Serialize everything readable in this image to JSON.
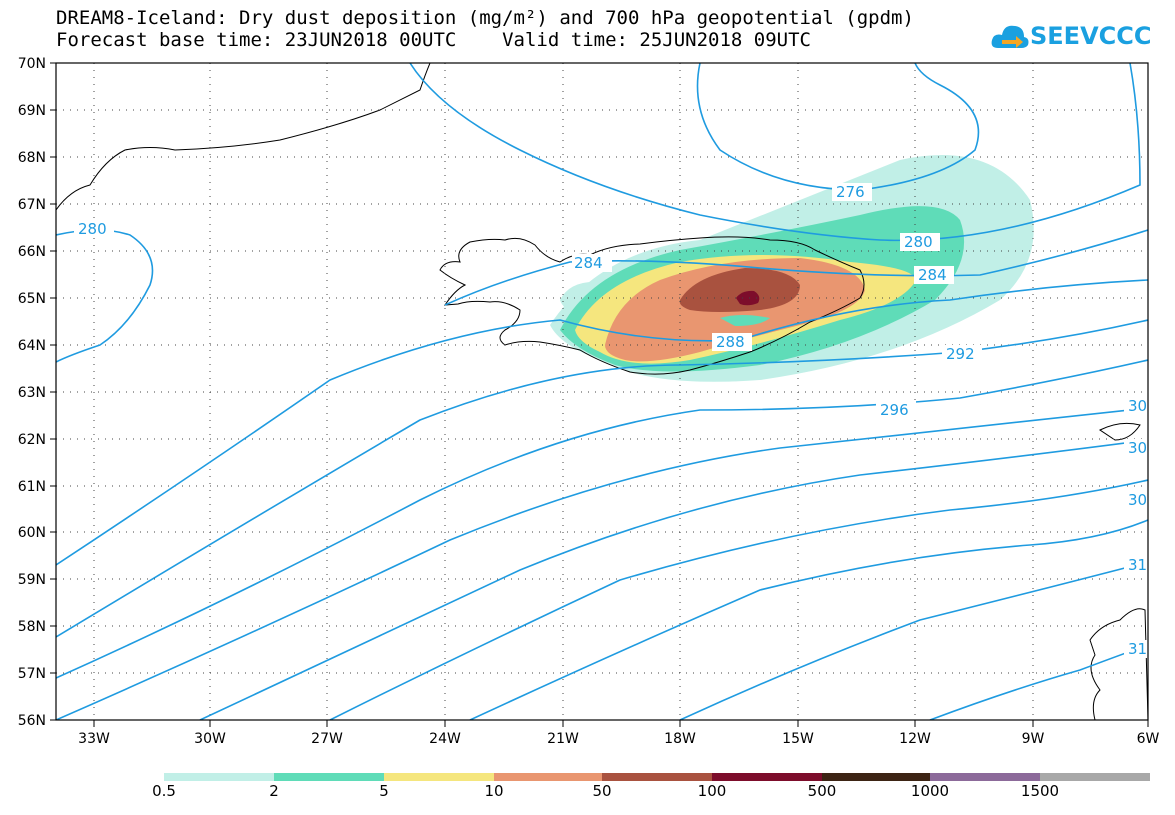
{
  "title_line1": "DREAM8-Iceland: Dry dust deposition (mg/m²) and 700 hPa geopotential (gpdm)",
  "title_line2": "Forecast base time: 23JUN2018 00UTC    Valid time: 25JUN2018 09UTC",
  "logo_text": "SEEVCCC",
  "icon": "cloud-logo-icon",
  "colors": {
    "contour": "#1f9be0",
    "levels": [
      "#c1efe7",
      "#5fdcb8",
      "#f5e67e",
      "#e99670",
      "#a9523f",
      "#7d0d2b",
      "#3d2414",
      "#8c6a9a",
      "#a8a8a8"
    ]
  },
  "map": {
    "lat_labels": [
      "70N",
      "69N",
      "68N",
      "67N",
      "66N",
      "65N",
      "64N",
      "63N",
      "62N",
      "61N",
      "60N",
      "59N",
      "58N",
      "57N",
      "56N"
    ],
    "lon_labels": [
      "33W",
      "30W",
      "27W",
      "24W",
      "21W",
      "18W",
      "15W",
      "12W",
      "9W",
      "6W"
    ],
    "extent": {
      "lon": [
        -34.5,
        -6
      ],
      "lat": [
        56,
        70
      ]
    },
    "grid": "dotted"
  },
  "contour_labels": [
    "280",
    "284",
    "276",
    "280",
    "284",
    "288",
    "292",
    "296",
    "30",
    "30",
    "30",
    "31",
    "31"
  ],
  "legend": {
    "labels": [
      "0.5",
      "2",
      "5",
      "10",
      "50",
      "100",
      "500",
      "1000",
      "1500"
    ]
  }
}
